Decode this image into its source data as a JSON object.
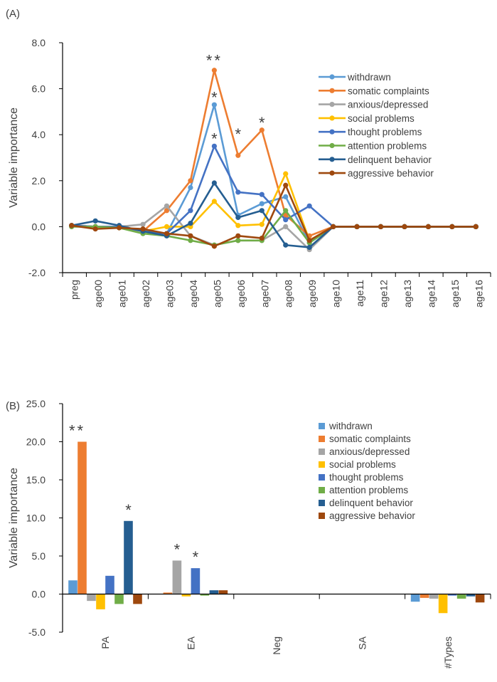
{
  "chart_data": [
    {
      "panel_label": "(A)",
      "type": "line",
      "ylabel": "Variable importance",
      "xlabel": "",
      "ylim": [
        -2.0,
        8.0
      ],
      "yticks": [
        "-2.0",
        "0.0",
        "2.0",
        "4.0",
        "6.0",
        "8.0"
      ],
      "grid": false,
      "legend_position": "top-right",
      "categories": [
        "preg",
        "age00",
        "age01",
        "age02",
        "age03",
        "age04",
        "age05",
        "age06",
        "age07",
        "age08",
        "age09",
        "age10",
        "age11",
        "age12",
        "age13",
        "age14",
        "age15",
        "age16"
      ],
      "series": [
        {
          "name": "withdrawn",
          "color": "#5B9BD5",
          "values": [
            0.05,
            0,
            0,
            -0.2,
            -0.3,
            1.7,
            5.3,
            0.5,
            1.0,
            1.3,
            -0.7,
            0,
            0,
            0,
            0,
            0,
            0,
            0
          ]
        },
        {
          "name": "somatic complaints",
          "color": "#ED7D31",
          "values": [
            0.05,
            0,
            0,
            -0.2,
            0.7,
            2.0,
            6.8,
            3.1,
            4.2,
            0.5,
            -0.4,
            0,
            0,
            0,
            0,
            0,
            0,
            0
          ]
        },
        {
          "name": "anxious/depressed",
          "color": "#A5A5A5",
          "values": [
            0.05,
            0,
            0,
            0.1,
            0.9,
            -0.4,
            -0.8,
            -0.6,
            -0.6,
            0.0,
            -1.0,
            0,
            0,
            0,
            0,
            0,
            0,
            0
          ]
        },
        {
          "name": "social problems",
          "color": "#FFC000",
          "values": [
            0.05,
            0,
            0,
            -0.2,
            0.0,
            0.0,
            1.1,
            0.05,
            0.1,
            2.3,
            -0.6,
            0,
            0,
            0,
            0,
            0,
            0,
            0
          ]
        },
        {
          "name": "thought problems",
          "color": "#4472C4",
          "values": [
            0.05,
            0,
            0,
            -0.2,
            -0.3,
            0.7,
            3.5,
            1.5,
            1.4,
            0.3,
            0.9,
            0,
            0,
            0,
            0,
            0,
            0,
            0
          ]
        },
        {
          "name": "attention problems",
          "color": "#70AD47",
          "values": [
            0,
            0,
            -0.05,
            -0.3,
            -0.4,
            -0.6,
            -0.8,
            -0.6,
            -0.6,
            0.7,
            -0.7,
            0,
            0,
            0,
            0,
            0,
            0,
            0
          ]
        },
        {
          "name": "delinquent behavior",
          "color": "#255E91",
          "values": [
            0.05,
            0.25,
            0.05,
            -0.2,
            -0.4,
            0.15,
            1.9,
            0.4,
            0.7,
            -0.8,
            -0.9,
            0,
            0,
            0,
            0,
            0,
            0,
            0
          ]
        },
        {
          "name": "aggressive behavior",
          "color": "#9E480E",
          "values": [
            0.05,
            -0.1,
            -0.05,
            -0.1,
            -0.3,
            -0.4,
            -0.85,
            -0.4,
            -0.5,
            1.8,
            -0.6,
            0,
            0,
            0,
            0,
            0,
            0,
            0
          ]
        }
      ],
      "annotations": [
        {
          "text": "**",
          "category": "age05",
          "y": 7.3
        },
        {
          "text": "*",
          "category": "age05",
          "y": 5.7
        },
        {
          "text": "*",
          "category": "age05",
          "y": 3.9
        },
        {
          "text": "*",
          "category": "age06",
          "y": 4.1
        },
        {
          "text": "*",
          "category": "age07",
          "y": 4.6
        }
      ]
    },
    {
      "panel_label": "(B)",
      "type": "bar",
      "ylabel": "Variable importance",
      "xlabel": "",
      "ylim": [
        -5.0,
        25.0
      ],
      "yticks": [
        "-5.0",
        "0.0",
        "5.0",
        "10.0",
        "15.0",
        "20.0",
        "25.0"
      ],
      "grid": false,
      "legend_position": "right",
      "categories": [
        "PA",
        "EA",
        "Neg",
        "SA",
        "#Types"
      ],
      "series": [
        {
          "name": "withdrawn",
          "color": "#5B9BD5",
          "values": [
            1.8,
            0,
            0,
            0,
            -1.0
          ]
        },
        {
          "name": "somatic complaints",
          "color": "#ED7D31",
          "values": [
            20.0,
            0.2,
            0,
            0,
            -0.5
          ]
        },
        {
          "name": "anxious/depressed",
          "color": "#A5A5A5",
          "values": [
            -0.9,
            4.4,
            0,
            0,
            -0.6
          ]
        },
        {
          "name": "social problems",
          "color": "#FFC000",
          "values": [
            -2.0,
            -0.3,
            0,
            0,
            -2.5
          ]
        },
        {
          "name": "thought problems",
          "color": "#4472C4",
          "values": [
            2.4,
            3.4,
            0,
            0,
            -0.2
          ]
        },
        {
          "name": "attention problems",
          "color": "#70AD47",
          "values": [
            -1.3,
            -0.2,
            0,
            0,
            -0.6
          ]
        },
        {
          "name": "delinquent behavior",
          "color": "#255E91",
          "values": [
            9.6,
            0.5,
            0,
            0,
            -0.3
          ]
        },
        {
          "name": "aggressive behavior",
          "color": "#9E480E",
          "values": [
            -1.3,
            0.5,
            0,
            0,
            -1.1
          ]
        }
      ],
      "annotations": [
        {
          "text": "**",
          "category": "PA",
          "series": 1
        },
        {
          "text": "*",
          "category": "PA",
          "series": 6
        },
        {
          "text": "*",
          "category": "EA",
          "series": 2
        },
        {
          "text": "*",
          "category": "EA",
          "series": 4
        }
      ]
    }
  ]
}
